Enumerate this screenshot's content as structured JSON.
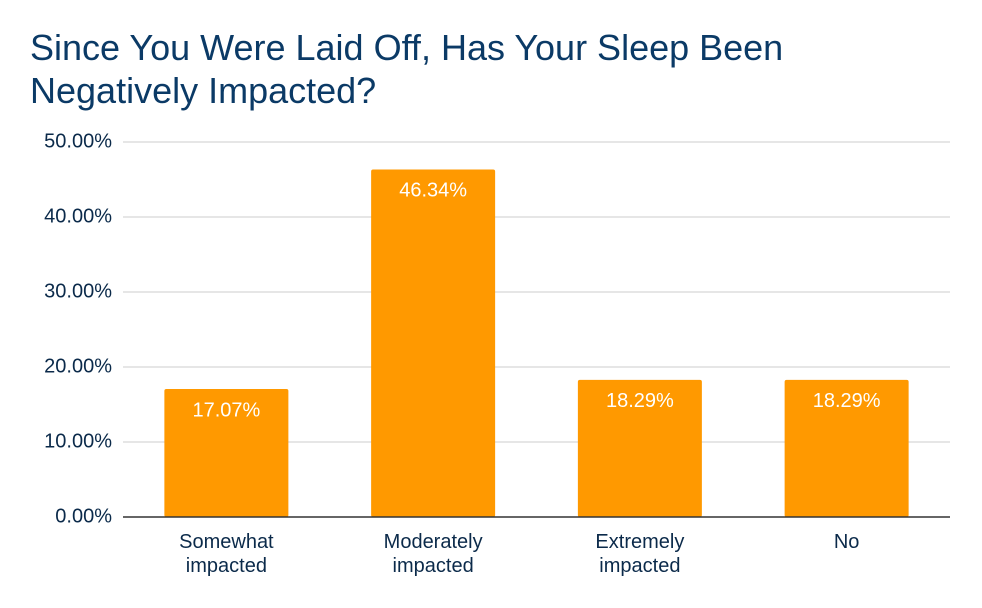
{
  "chart_data": {
    "type": "bar",
    "title": "Since You Were Laid Off, Has Your Sleep Been Negatively Impacted?",
    "categories": [
      "Somewhat impacted",
      "Moderately impacted",
      "Extremely impacted",
      "No"
    ],
    "values": [
      17.07,
      46.34,
      18.29,
      18.29
    ],
    "value_labels": [
      "17.07%",
      "46.34%",
      "18.29%",
      "18.29%"
    ],
    "color": "#ff9900",
    "ylim": [
      0,
      50
    ],
    "yticks": [
      {
        "value": 0,
        "label": "0.00%"
      },
      {
        "value": 10,
        "label": "10.00%"
      },
      {
        "value": 20,
        "label": "20.00%"
      },
      {
        "value": 30,
        "label": "30.00%"
      },
      {
        "value": 40,
        "label": "40.00%"
      },
      {
        "value": 50,
        "label": "50.00%"
      }
    ],
    "grid": true
  }
}
